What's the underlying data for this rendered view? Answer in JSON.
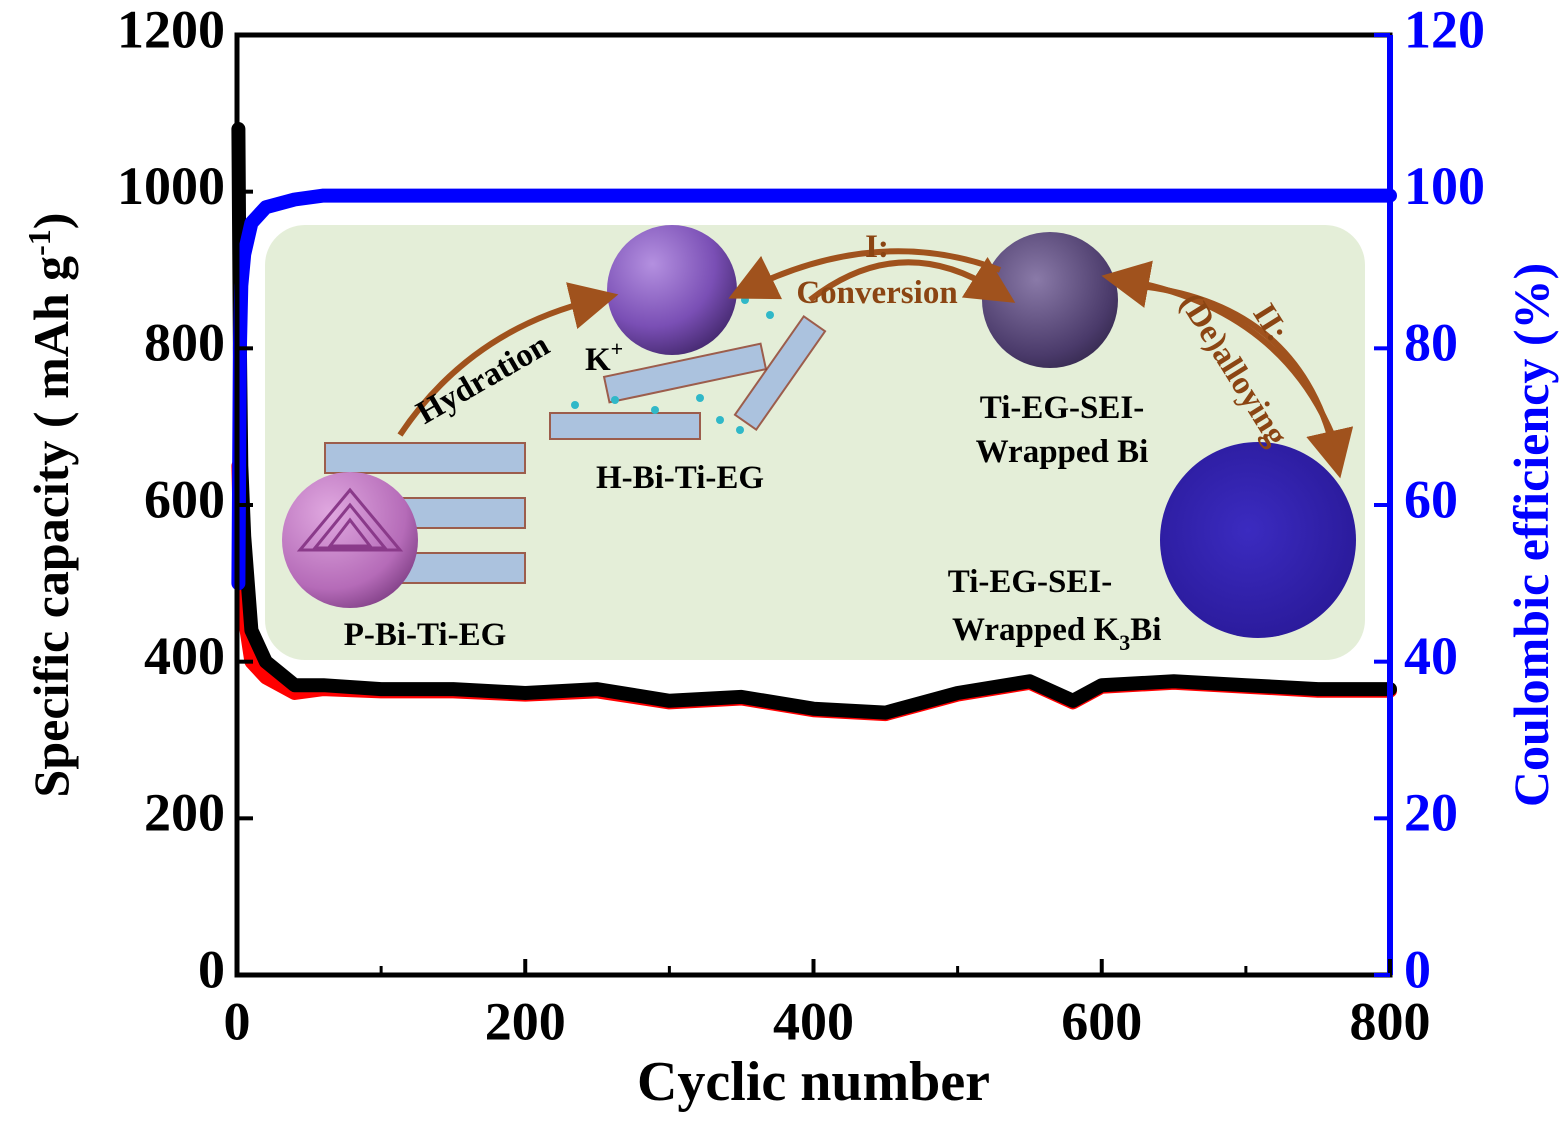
{
  "chart_data": {
    "type": "line",
    "x_label": "Cyclic number",
    "y_label": [
      "Specific capacity ( mAh g",
      "-1",
      ")"
    ],
    "y2_label": "Coulombic efficiency (%)",
    "x": [
      1,
      2,
      3,
      5,
      10,
      20,
      40,
      60,
      100,
      150,
      200,
      250,
      300,
      350,
      400,
      450,
      500,
      550,
      580,
      600,
      650,
      700,
      750,
      800
    ],
    "series": [
      {
        "color": "#ff0000",
        "values": [
          650,
          560,
          500,
          460,
          400,
          380,
          360,
          365,
          362,
          362,
          358,
          362,
          348,
          353,
          338,
          333,
          358,
          373,
          348,
          368,
          373,
          368,
          363,
          363
        ]
      },
      {
        "color": "#000000",
        "values": [
          1080,
          800,
          650,
          560,
          440,
          400,
          370,
          370,
          365,
          365,
          360,
          365,
          350,
          355,
          340,
          335,
          360,
          375,
          350,
          370,
          375,
          370,
          365,
          365
        ]
      },
      {
        "color": "#0000ff",
        "axis": "y2",
        "values": [
          50,
          80,
          88,
          92,
          96,
          98,
          99,
          99.5,
          99.5,
          99.5,
          99.5,
          99.5,
          99.5,
          99.5,
          99.5,
          99.5,
          99.5,
          99.5,
          99.5,
          99.5,
          99.5,
          99.5,
          99.5,
          99.5
        ]
      }
    ],
    "xlim": [
      0,
      800
    ],
    "xticks": [
      0,
      200,
      400,
      600,
      800
    ],
    "xticks_minor": [
      100,
      300,
      500,
      700
    ],
    "ylim": [
      0,
      1200
    ],
    "yticks": [
      0,
      200,
      400,
      600,
      800,
      1000,
      1200
    ],
    "y2lim": [
      0,
      120
    ],
    "y2ticks": [
      0,
      20,
      40,
      60,
      80,
      100,
      120
    ],
    "y2_color": "#0000ff",
    "inset": {
      "step1": [
        "I:",
        "Conversion"
      ],
      "step2": [
        "II:",
        "(De)alloying"
      ],
      "hydration": "Hydration",
      "ion": [
        "K",
        "+"
      ],
      "h_label": "H-Bi-Ti-EG",
      "p_label": "P-Bi-Ti-EG",
      "bi_label": [
        "Ti-EG-SEI-",
        "Wrapped Bi"
      ],
      "k3bi_label": [
        "Ti-EG-SEI-",
        "Wrapped K",
        "3",
        "Bi"
      ]
    }
  }
}
